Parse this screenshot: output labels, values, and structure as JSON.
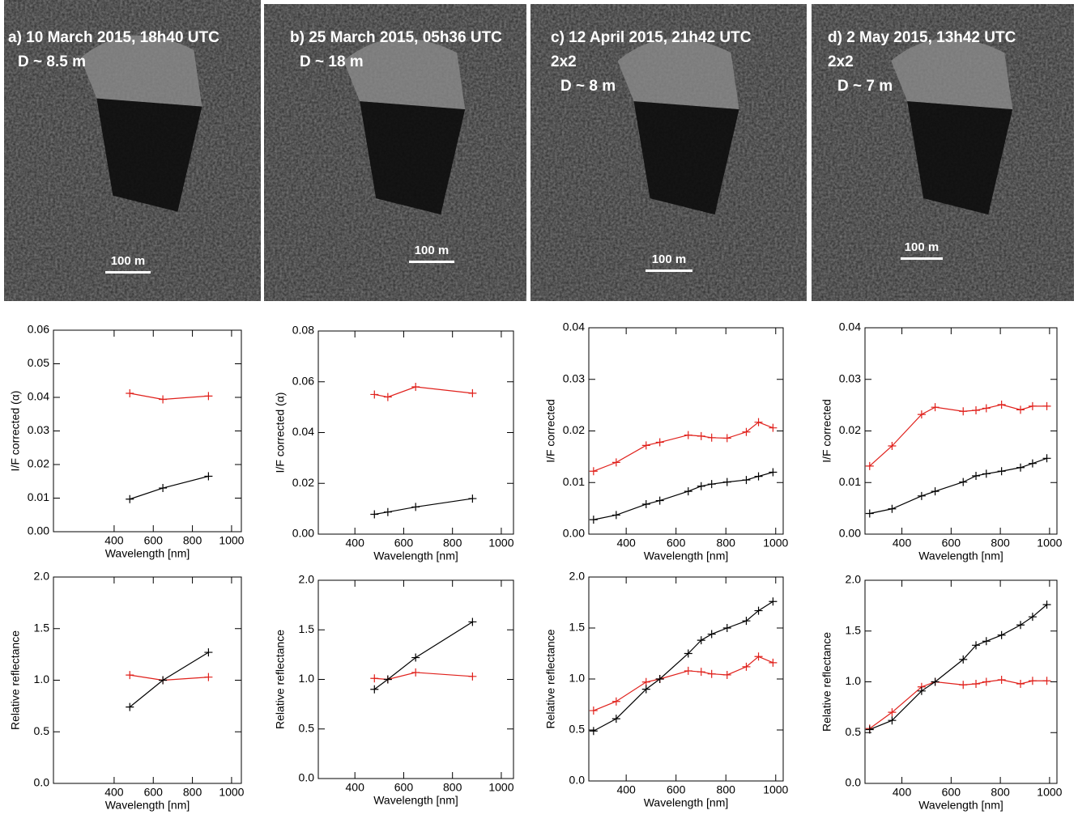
{
  "panels": [
    {
      "title": "a) 10 March 2015, 18h40 UTC",
      "lines": [
        "D ~ 8.5 m"
      ],
      "scale": "100 m"
    },
    {
      "title": "b) 25 March 2015, 05h36 UTC",
      "lines": [
        "D ~ 18 m"
      ],
      "scale": "100 m"
    },
    {
      "title": "c) 12 April 2015, 21h42 UTC",
      "lines": [
        "2x2",
        "D ~ 8 m"
      ],
      "scale": "100 m"
    },
    {
      "title": "d) 2 May 2015, 13h42 UTC",
      "lines": [
        "2x2",
        "D ~ 7 m"
      ],
      "scale": "100 m"
    }
  ],
  "chart_data": [
    {
      "type": "line",
      "xlabel": "Wavelength [nm]",
      "ylabel": "I/F corrected (α)",
      "x": [
        480,
        649,
        882
      ],
      "xlim": [
        90,
        1050
      ],
      "xticks": [
        400,
        600,
        800,
        1000
      ],
      "ylim": [
        0,
        0.06
      ],
      "yticks": [
        {
          "value": 0,
          "label": "0.00"
        },
        {
          "value": 0.01,
          "label": "0.01"
        },
        {
          "value": 0.02,
          "label": "0.02"
        },
        {
          "value": 0.03,
          "label": "0.03"
        },
        {
          "value": 0.04,
          "label": "0.04"
        },
        {
          "value": 0.05,
          "label": "0.05"
        },
        {
          "value": 0.06,
          "label": "0.06"
        }
      ],
      "series": [
        {
          "color": "#e0201b",
          "values": [
            0.0412,
            0.0394,
            0.0404
          ]
        },
        {
          "color": "#000000",
          "values": [
            0.0097,
            0.013,
            0.0165
          ]
        }
      ]
    },
    {
      "type": "line",
      "xlabel": "Wavelength [nm]",
      "ylabel": "I/F corrected (α)",
      "x": [
        480,
        535,
        649,
        882
      ],
      "xlim": [
        250,
        1050
      ],
      "xticks": [
        400,
        600,
        800,
        1000
      ],
      "ylim": [
        0,
        0.08
      ],
      "yticks": [
        {
          "value": 0,
          "label": "0.00"
        },
        {
          "value": 0.02,
          "label": "0.02"
        },
        {
          "value": 0.04,
          "label": "0.04"
        },
        {
          "value": 0.06,
          "label": "0.06"
        },
        {
          "value": 0.08,
          "label": "0.08"
        }
      ],
      "series": [
        {
          "color": "#e0201b",
          "values": [
            0.055,
            0.054,
            0.058,
            0.0555
          ]
        },
        {
          "color": "#000000",
          "values": [
            0.0078,
            0.0087,
            0.0107,
            0.014
          ]
        }
      ]
    },
    {
      "type": "line",
      "xlabel": "Wavelength [nm]",
      "ylabel": "I/F corrected",
      "x": [
        269,
        360,
        480,
        535,
        649,
        701,
        743,
        805,
        882,
        931,
        989
      ],
      "xlim": [
        250,
        1030
      ],
      "xticks": [
        400,
        600,
        800,
        1000
      ],
      "ylim": [
        0,
        0.04
      ],
      "yticks": [
        {
          "value": 0,
          "label": "0.00"
        },
        {
          "value": 0.01,
          "label": "0.01"
        },
        {
          "value": 0.02,
          "label": "0.02"
        },
        {
          "value": 0.03,
          "label": "0.03"
        },
        {
          "value": 0.04,
          "label": "0.04"
        }
      ],
      "series": [
        {
          "color": "#e0201b",
          "values": [
            0.0122,
            0.0139,
            0.0172,
            0.0178,
            0.0192,
            0.019,
            0.0187,
            0.0186,
            0.0198,
            0.0217,
            0.0206
          ]
        },
        {
          "color": "#000000",
          "values": [
            0.0028,
            0.0037,
            0.0058,
            0.0065,
            0.0083,
            0.0093,
            0.0097,
            0.0101,
            0.0105,
            0.0112,
            0.012
          ]
        }
      ]
    },
    {
      "type": "line",
      "xlabel": "Wavelength [nm]",
      "ylabel": "I/F corrected",
      "x": [
        269,
        360,
        480,
        535,
        649,
        701,
        743,
        805,
        882,
        931,
        989
      ],
      "xlim": [
        250,
        1030
      ],
      "xticks": [
        400,
        600,
        800,
        1000
      ],
      "ylim": [
        0,
        0.04
      ],
      "yticks": [
        {
          "value": 0,
          "label": "0.00"
        },
        {
          "value": 0.01,
          "label": "0.01"
        },
        {
          "value": 0.02,
          "label": "0.02"
        },
        {
          "value": 0.03,
          "label": "0.03"
        },
        {
          "value": 0.04,
          "label": "0.04"
        }
      ],
      "series": [
        {
          "color": "#e0201b",
          "values": [
            0.0132,
            0.0171,
            0.0232,
            0.0246,
            0.0238,
            0.024,
            0.0244,
            0.0251,
            0.0241,
            0.0248,
            0.0248
          ]
        },
        {
          "color": "#000000",
          "values": [
            0.004,
            0.0049,
            0.0074,
            0.0083,
            0.0101,
            0.0113,
            0.0117,
            0.0122,
            0.0129,
            0.0137,
            0.0147
          ]
        }
      ]
    },
    {
      "type": "line",
      "xlabel": "Wavelength [nm]",
      "ylabel": "Relative reflectance",
      "x": [
        480,
        649,
        882
      ],
      "xlim": [
        90,
        1050
      ],
      "xticks": [
        400,
        600,
        800,
        1000
      ],
      "ylim": [
        0,
        2
      ],
      "yticks": [
        {
          "value": 0,
          "label": "0.0"
        },
        {
          "value": 0.5,
          "label": "0.5"
        },
        {
          "value": 1,
          "label": "1.0"
        },
        {
          "value": 1.5,
          "label": "1.5"
        },
        {
          "value": 2,
          "label": "2.0"
        }
      ],
      "series": [
        {
          "color": "#e0201b",
          "values": [
            1.05,
            1.0,
            1.03
          ]
        },
        {
          "color": "#000000",
          "values": [
            0.74,
            1.0,
            1.27
          ]
        }
      ]
    },
    {
      "type": "line",
      "xlabel": "Wavelength [nm]",
      "ylabel": "Relative reflectance",
      "x": [
        480,
        535,
        649,
        882
      ],
      "xlim": [
        250,
        1050
      ],
      "xticks": [
        400,
        600,
        800,
        1000
      ],
      "ylim": [
        0,
        2
      ],
      "yticks": [
        {
          "value": 0,
          "label": "0.0"
        },
        {
          "value": 0.5,
          "label": "0.5"
        },
        {
          "value": 1,
          "label": "1.0"
        },
        {
          "value": 1.5,
          "label": "1.5"
        },
        {
          "value": 2,
          "label": "2.0"
        }
      ],
      "series": [
        {
          "color": "#e0201b",
          "values": [
            1.01,
            1.0,
            1.07,
            1.03
          ]
        },
        {
          "color": "#000000",
          "values": [
            0.9,
            1.0,
            1.22,
            1.58
          ]
        }
      ]
    },
    {
      "type": "line",
      "xlabel": "Wavelength [nm]",
      "ylabel": "Relative reflectance",
      "x": [
        269,
        360,
        480,
        535,
        649,
        701,
        743,
        805,
        882,
        931,
        989
      ],
      "xlim": [
        250,
        1030
      ],
      "xticks": [
        400,
        600,
        800,
        1000
      ],
      "ylim": [
        0,
        2
      ],
      "yticks": [
        {
          "value": 0,
          "label": "0.0"
        },
        {
          "value": 0.5,
          "label": "0.5"
        },
        {
          "value": 1,
          "label": "1.0"
        },
        {
          "value": 1.5,
          "label": "1.5"
        },
        {
          "value": 2,
          "label": "2.0"
        }
      ],
      "series": [
        {
          "color": "#e0201b",
          "values": [
            0.69,
            0.78,
            0.97,
            1.0,
            1.08,
            1.07,
            1.05,
            1.04,
            1.12,
            1.22,
            1.16
          ]
        },
        {
          "color": "#000000",
          "values": [
            0.49,
            0.61,
            0.9,
            1.0,
            1.25,
            1.38,
            1.44,
            1.5,
            1.57,
            1.67,
            1.76
          ]
        }
      ]
    },
    {
      "type": "line",
      "xlabel": "Wavelength [nm]",
      "ylabel": "Relative reflectance",
      "x": [
        269,
        360,
        480,
        535,
        649,
        701,
        743,
        805,
        882,
        931,
        989
      ],
      "xlim": [
        250,
        1030
      ],
      "xticks": [
        400,
        600,
        800,
        1000
      ],
      "ylim": [
        0,
        2
      ],
      "yticks": [
        {
          "value": 0,
          "label": "0.0"
        },
        {
          "value": 0.5,
          "label": "0.5"
        },
        {
          "value": 1,
          "label": "1.0"
        },
        {
          "value": 1.5,
          "label": "1.5"
        },
        {
          "value": 2,
          "label": "2.0"
        }
      ],
      "series": [
        {
          "color": "#e0201b",
          "values": [
            0.54,
            0.7,
            0.95,
            1.0,
            0.97,
            0.98,
            1.0,
            1.02,
            0.98,
            1.01,
            1.01
          ]
        },
        {
          "color": "#000000",
          "values": [
            0.53,
            0.62,
            0.91,
            1.0,
            1.22,
            1.36,
            1.4,
            1.46,
            1.56,
            1.64,
            1.76
          ]
        }
      ]
    }
  ]
}
